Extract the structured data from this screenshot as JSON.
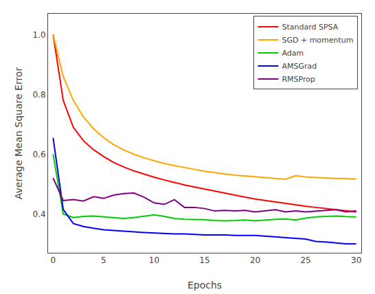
{
  "chart_data": {
    "type": "line",
    "xlabel": "Epochs",
    "ylabel": "Average Mean Square Error",
    "x": [
      0,
      1,
      2,
      3,
      4,
      5,
      6,
      7,
      8,
      9,
      10,
      11,
      12,
      13,
      14,
      15,
      16,
      17,
      18,
      19,
      20,
      21,
      22,
      23,
      24,
      25,
      26,
      27,
      28,
      29,
      30
    ],
    "series": [
      {
        "name": "Standard SPSA",
        "color": "#ff0000",
        "values": [
          1.0,
          0.78,
          0.69,
          0.645,
          0.615,
          0.592,
          0.572,
          0.557,
          0.544,
          0.533,
          0.523,
          0.514,
          0.505,
          0.497,
          0.49,
          0.483,
          0.476,
          0.469,
          0.462,
          0.456,
          0.45,
          0.445,
          0.44,
          0.435,
          0.43,
          0.426,
          0.422,
          0.418,
          0.414,
          0.41,
          0.407
        ]
      },
      {
        "name": "SGD + momentum",
        "color": "#ffa500",
        "values": [
          1.0,
          0.86,
          0.78,
          0.725,
          0.685,
          0.655,
          0.632,
          0.614,
          0.6,
          0.588,
          0.578,
          0.569,
          0.562,
          0.555,
          0.549,
          0.543,
          0.538,
          0.534,
          0.53,
          0.527,
          0.524,
          0.521,
          0.518,
          0.516,
          0.528,
          0.524,
          0.522,
          0.52,
          0.519,
          0.518,
          0.517
        ]
      },
      {
        "name": "Adam",
        "color": "#00cc00",
        "values": [
          0.6,
          0.4,
          0.388,
          0.392,
          0.393,
          0.39,
          0.387,
          0.385,
          0.388,
          0.392,
          0.397,
          0.392,
          0.385,
          0.382,
          0.382,
          0.381,
          0.378,
          0.377,
          0.378,
          0.38,
          0.377,
          0.38,
          0.382,
          0.383,
          0.38,
          0.386,
          0.39,
          0.392,
          0.393,
          0.391,
          0.39
        ]
      },
      {
        "name": "AMSGrad",
        "color": "#0000ff",
        "values": [
          0.655,
          0.415,
          0.368,
          0.358,
          0.352,
          0.347,
          0.345,
          0.342,
          0.34,
          0.338,
          0.336,
          0.334,
          0.333,
          0.333,
          0.331,
          0.33,
          0.33,
          0.33,
          0.328,
          0.328,
          0.328,
          0.326,
          0.323,
          0.321,
          0.318,
          0.316,
          0.308,
          0.306,
          0.303,
          0.3,
          0.3
        ]
      },
      {
        "name": "RMSProp",
        "color": "#800080",
        "values": [
          0.52,
          0.445,
          0.448,
          0.443,
          0.458,
          0.452,
          0.463,
          0.468,
          0.47,
          0.456,
          0.437,
          0.432,
          0.448,
          0.422,
          0.422,
          0.418,
          0.41,
          0.412,
          0.41,
          0.412,
          0.407,
          0.41,
          0.414,
          0.407,
          0.41,
          0.407,
          0.41,
          0.412,
          0.414,
          0.407,
          0.41
        ]
      }
    ],
    "xlim": [
      -0.5,
      30.5
    ],
    "ylim": [
      0.27,
      1.07
    ],
    "xticks": [
      0,
      5,
      10,
      15,
      20,
      25,
      30
    ],
    "yticks": [
      0.4,
      0.6,
      0.8,
      {
        "value": 1.0,
        "label": "1.0"
      }
    ],
    "grid": false,
    "legend": "upper right"
  }
}
